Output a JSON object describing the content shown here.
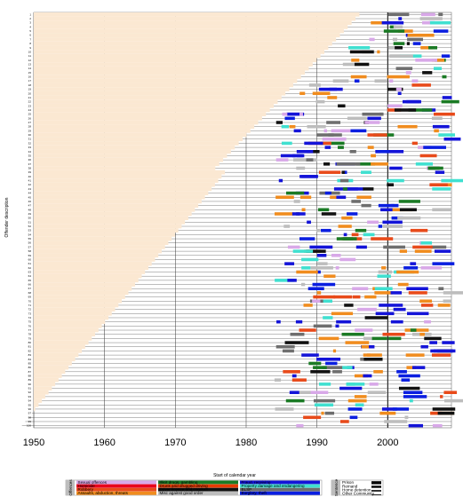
{
  "chart_data": {
    "type": "timeline",
    "xlabel": "Start of calendar year",
    "ylabel": "Offender description",
    "xlim": [
      1950,
      2009
    ],
    "x_ticks": [
      1950,
      1960,
      1970,
      1980,
      1990,
      2000
    ],
    "row_count": 100,
    "row_labels": [
      "1",
      "2",
      "3",
      "4",
      "5",
      "6",
      "7",
      "8",
      "9",
      "10",
      "11",
      "12",
      "13",
      "14",
      "15",
      "16",
      "17",
      "18",
      "19",
      "20",
      "21",
      "22",
      "23",
      "24",
      "25",
      "26",
      "27",
      "28",
      "29",
      "30",
      "31",
      "32",
      "33",
      "34",
      "35",
      "36",
      "37",
      "38",
      "39",
      "40",
      "41",
      "42",
      "43",
      "44",
      "45",
      "46",
      "47",
      "48",
      "49",
      "50",
      "51",
      "52",
      "53",
      "54",
      "55",
      "56",
      "57",
      "58",
      "59",
      "60",
      "61",
      "62",
      "63",
      "64",
      "65",
      "66",
      "67",
      "68",
      "69",
      "70",
      "71",
      "72",
      "73",
      "74",
      "75",
      "76",
      "77",
      "78",
      "79",
      "80",
      "81",
      "82",
      "83",
      "84",
      "85",
      "86",
      "87",
      "88",
      "89",
      "90",
      "91",
      "92",
      "93",
      "94",
      "95",
      "96",
      "97",
      "98",
      "99",
      "100"
    ],
    "reference_year": 2000,
    "background_color": "#fbe8d2",
    "grid_color": "#555555",
    "offence_legend": {
      "title": "Offences",
      "items": [
        {
          "label": "Sexual offences",
          "color": "#d8a8e8"
        },
        {
          "label": "Homicide",
          "color": "#e8001c"
        },
        {
          "label": "Robbery",
          "color": "#e84a1a"
        },
        {
          "label": "Assaults, abduction, threats",
          "color": "#f08c1e"
        },
        {
          "label": "Illicit drugs, gambling",
          "color": "#1a7a24"
        },
        {
          "label": "Drunk and drugged driving",
          "color": "#e83a00"
        },
        {
          "label": "Driver licence and conduct",
          "color": "#111111"
        },
        {
          "label": "Misc against good order",
          "color": "#bdbdbd"
        },
        {
          "label": "Fraud, receiving",
          "color": "#1414d8"
        },
        {
          "label": "Property damage and endangering",
          "color": "#40e0d0"
        },
        {
          "label": "BLSP",
          "color": "#6e6e6e"
        },
        {
          "label": "Burglary, theft",
          "color": "#0a1ee0"
        }
      ]
    },
    "sentence_legend": {
      "title": "Sentence",
      "items": [
        {
          "label": "Prison"
        },
        {
          "label": "Remand"
        },
        {
          "label": "Home detention"
        },
        {
          "label": "Other Community"
        }
      ]
    }
  }
}
